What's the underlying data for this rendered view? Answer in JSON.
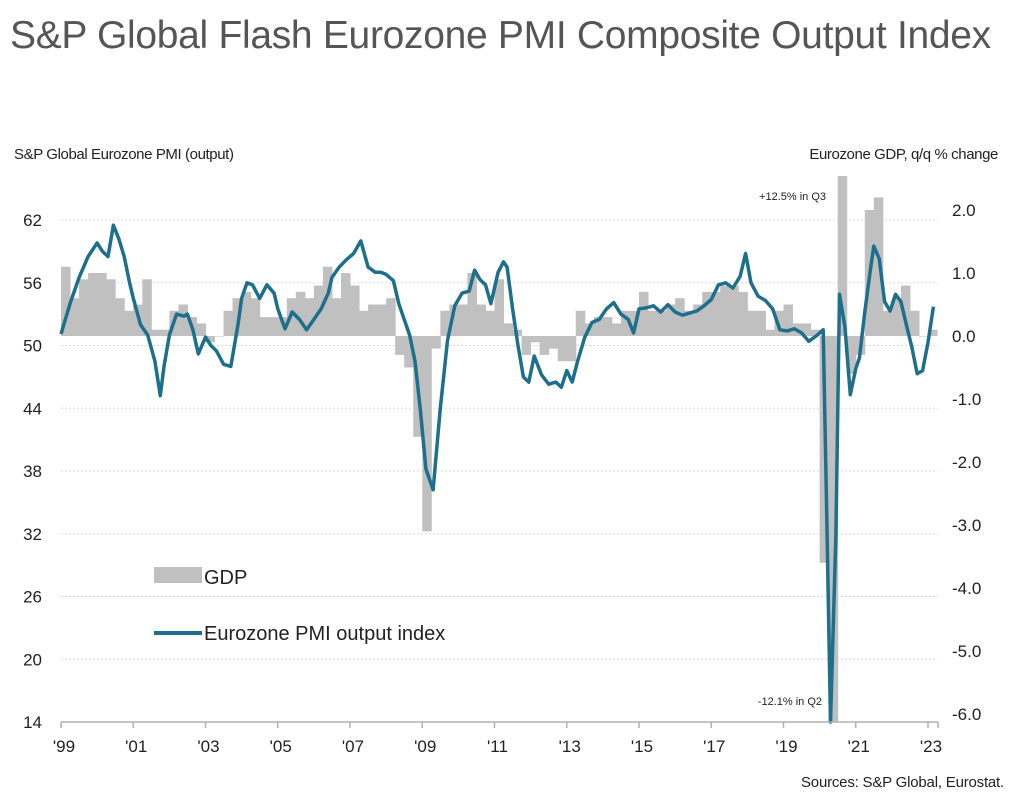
{
  "title": "S&P Global Flash Eurozone PMI Composite Output Index",
  "source": "Sources: S&P Global, Eurostat.",
  "colors": {
    "gdp": "#c0c0c0",
    "pmi": "#1e6f8c",
    "grid": "#d8d8d8",
    "axis": "#b0b0b0"
  },
  "chart_data": {
    "type": "bar+line",
    "title": "S&P Global Flash Eurozone PMI Composite Output Index",
    "left_axis": {
      "label": "S&P Global Eurozone PMI (output)",
      "range": [
        14,
        65
      ],
      "ticks": [
        14,
        20,
        26,
        32,
        38,
        44,
        50,
        56,
        62
      ]
    },
    "right_axis": {
      "label": "Eurozone GDP, q/q % change",
      "range": [
        -6.0,
        2.5
      ],
      "ticks": [
        "-6.0",
        "-5.0",
        "-4.0",
        "-3.0",
        "-2.0",
        "-1.0",
        "0.0",
        "1.0",
        "2.0"
      ]
    },
    "x_axis": {
      "range": [
        1999.0,
        2023.2
      ],
      "ticks": [
        "'99",
        "'01",
        "'03",
        "'05",
        "'07",
        "'09",
        "'11",
        "'13",
        "'15",
        "'17",
        "'19",
        "'21",
        "'23"
      ],
      "tick_years": [
        1999,
        2001,
        2003,
        2005,
        2007,
        2009,
        2011,
        2013,
        2015,
        2017,
        2019,
        2021,
        2023
      ]
    },
    "legend": {
      "placement": "lower-left",
      "entries": [
        "GDP",
        "Eurozone PMI output index"
      ]
    },
    "annotations": [
      {
        "text": "+12.5% in Q3",
        "x": 2020.6,
        "note": "GDP bar clipped at top"
      },
      {
        "text": "-12.1% in Q2",
        "x": 2020.4,
        "note": "GDP bar clipped at bottom"
      }
    ],
    "series": [
      {
        "name": "GDP",
        "type": "bar",
        "axis": "right",
        "x": [
          1999.0,
          1999.25,
          1999.5,
          1999.75,
          2000.0,
          2000.25,
          2000.5,
          2000.75,
          2001.0,
          2001.25,
          2001.5,
          2001.75,
          2002.0,
          2002.25,
          2002.5,
          2002.75,
          2003.0,
          2003.25,
          2003.5,
          2003.75,
          2004.0,
          2004.25,
          2004.5,
          2004.75,
          2005.0,
          2005.25,
          2005.5,
          2005.75,
          2006.0,
          2006.25,
          2006.5,
          2006.75,
          2007.0,
          2007.25,
          2007.5,
          2007.75,
          2008.0,
          2008.25,
          2008.5,
          2008.75,
          2009.0,
          2009.25,
          2009.5,
          2009.75,
          2010.0,
          2010.25,
          2010.5,
          2010.75,
          2011.0,
          2011.25,
          2011.5,
          2011.75,
          2012.0,
          2012.25,
          2012.5,
          2012.75,
          2013.0,
          2013.25,
          2013.5,
          2013.75,
          2014.0,
          2014.25,
          2014.5,
          2014.75,
          2015.0,
          2015.25,
          2015.5,
          2015.75,
          2016.0,
          2016.25,
          2016.5,
          2016.75,
          2017.0,
          2017.25,
          2017.5,
          2017.75,
          2018.0,
          2018.25,
          2018.5,
          2018.75,
          2019.0,
          2019.25,
          2019.5,
          2019.75,
          2020.0,
          2020.25,
          2020.5,
          2020.75,
          2021.0,
          2021.25,
          2021.5,
          2021.75,
          2022.0,
          2022.25,
          2022.5,
          2022.75,
          2023.0
        ],
        "values": [
          1.1,
          0.6,
          0.9,
          1.0,
          1.0,
          0.9,
          0.6,
          0.4,
          0.5,
          0.9,
          0.1,
          0.1,
          0.4,
          0.5,
          0.3,
          0.2,
          -0.1,
          0.0,
          0.4,
          0.6,
          0.7,
          0.6,
          0.3,
          0.3,
          0.3,
          0.6,
          0.7,
          0.6,
          0.8,
          1.1,
          0.6,
          1.0,
          0.8,
          0.4,
          0.5,
          0.5,
          0.6,
          -0.3,
          -0.5,
          -1.6,
          -3.1,
          -0.2,
          0.4,
          0.5,
          0.5,
          1.0,
          0.5,
          0.4,
          0.9,
          0.2,
          0.1,
          -0.3,
          -0.1,
          -0.3,
          -0.2,
          -0.4,
          -0.4,
          0.4,
          0.2,
          0.3,
          0.3,
          0.2,
          0.4,
          0.4,
          0.7,
          0.4,
          0.4,
          0.5,
          0.6,
          0.4,
          0.5,
          0.7,
          0.7,
          0.8,
          0.8,
          0.7,
          0.4,
          0.4,
          0.1,
          0.4,
          0.5,
          0.2,
          0.2,
          0.1,
          -3.6,
          -12.1,
          12.5,
          -0.6,
          -0.3,
          2.0,
          2.2,
          0.4,
          0.6,
          0.8,
          0.4,
          0.0,
          0.1
        ]
      },
      {
        "name": "Eurozone PMI output index",
        "type": "line",
        "axis": "left",
        "x": [
          1999.0,
          1999.25,
          1999.5,
          1999.75,
          2000.0,
          2000.15,
          2000.3,
          2000.45,
          2000.6,
          2000.75,
          2000.9,
          2001.0,
          2001.2,
          2001.4,
          2001.6,
          2001.75,
          2001.85,
          2002.0,
          2002.2,
          2002.4,
          2002.5,
          2002.65,
          2002.8,
          2003.0,
          2003.15,
          2003.3,
          2003.5,
          2003.7,
          2003.9,
          2004.0,
          2004.15,
          2004.3,
          2004.5,
          2004.7,
          2004.9,
          2005.0,
          2005.2,
          2005.4,
          2005.6,
          2005.8,
          2006.0,
          2006.2,
          2006.4,
          2006.5,
          2006.7,
          2006.9,
          2007.1,
          2007.3,
          2007.5,
          2007.7,
          2007.85,
          2008.0,
          2008.2,
          2008.35,
          2008.5,
          2008.65,
          2008.8,
          2008.95,
          2009.1,
          2009.3,
          2009.5,
          2009.7,
          2009.9,
          2010.1,
          2010.3,
          2010.45,
          2010.6,
          2010.75,
          2010.9,
          2011.1,
          2011.25,
          2011.35,
          2011.5,
          2011.65,
          2011.8,
          2011.95,
          2012.1,
          2012.3,
          2012.5,
          2012.7,
          2012.85,
          2013.0,
          2013.15,
          2013.3,
          2013.5,
          2013.7,
          2013.9,
          2014.1,
          2014.3,
          2014.5,
          2014.7,
          2014.85,
          2015.0,
          2015.2,
          2015.4,
          2015.6,
          2015.8,
          2016.0,
          2016.2,
          2016.4,
          2016.6,
          2016.8,
          2017.0,
          2017.2,
          2017.4,
          2017.6,
          2017.8,
          2017.95,
          2018.1,
          2018.3,
          2018.5,
          2018.7,
          2018.9,
          2019.1,
          2019.3,
          2019.5,
          2019.7,
          2019.9,
          2020.1,
          2020.2,
          2020.3,
          2020.45,
          2020.55,
          2020.7,
          2020.85,
          2021.0,
          2021.1,
          2021.25,
          2021.4,
          2021.5,
          2021.65,
          2021.8,
          2021.95,
          2022.1,
          2022.25,
          2022.4,
          2022.55,
          2022.7,
          2022.85,
          2023.0,
          2023.15
        ],
        "values": [
          51.1,
          54.0,
          56.5,
          58.5,
          59.8,
          59.0,
          58.5,
          61.5,
          60.2,
          58.5,
          56.0,
          54.5,
          52.0,
          51.0,
          48.5,
          45.2,
          48.0,
          51.0,
          53.0,
          52.8,
          53.0,
          51.5,
          49.2,
          50.8,
          50.0,
          49.5,
          48.2,
          48.0,
          52.0,
          54.5,
          56.0,
          55.8,
          54.5,
          55.8,
          55.0,
          53.5,
          51.6,
          53.2,
          52.5,
          51.5,
          52.5,
          53.5,
          55.0,
          56.5,
          57.5,
          58.2,
          58.8,
          60.0,
          57.5,
          57.0,
          57.0,
          56.8,
          56.2,
          54.0,
          52.5,
          51.0,
          48.5,
          43.8,
          38.2,
          36.2,
          44.0,
          50.5,
          53.8,
          55.0,
          55.2,
          57.2,
          56.3,
          55.8,
          54.0,
          57.0,
          58.0,
          57.5,
          53.5,
          50.0,
          47.0,
          46.5,
          49.0,
          47.2,
          46.3,
          46.5,
          46.0,
          47.6,
          46.5,
          48.5,
          50.8,
          52.2,
          52.5,
          53.5,
          54.1,
          53.0,
          52.5,
          51.2,
          53.5,
          53.6,
          53.8,
          53.2,
          53.9,
          53.2,
          52.9,
          53.1,
          53.3,
          53.8,
          54.4,
          55.8,
          56.0,
          55.5,
          56.6,
          58.8,
          56.0,
          54.7,
          54.3,
          53.5,
          51.5,
          51.4,
          51.6,
          51.2,
          50.4,
          50.9,
          51.5,
          33.0,
          13.6,
          31.9,
          54.9,
          51.8,
          45.3,
          47.8,
          48.8,
          53.2,
          57.1,
          59.5,
          58.3,
          54.2,
          53.3,
          54.9,
          54.2,
          52.0,
          49.9,
          47.3,
          47.6,
          50.3,
          53.7
        ]
      }
    ]
  }
}
